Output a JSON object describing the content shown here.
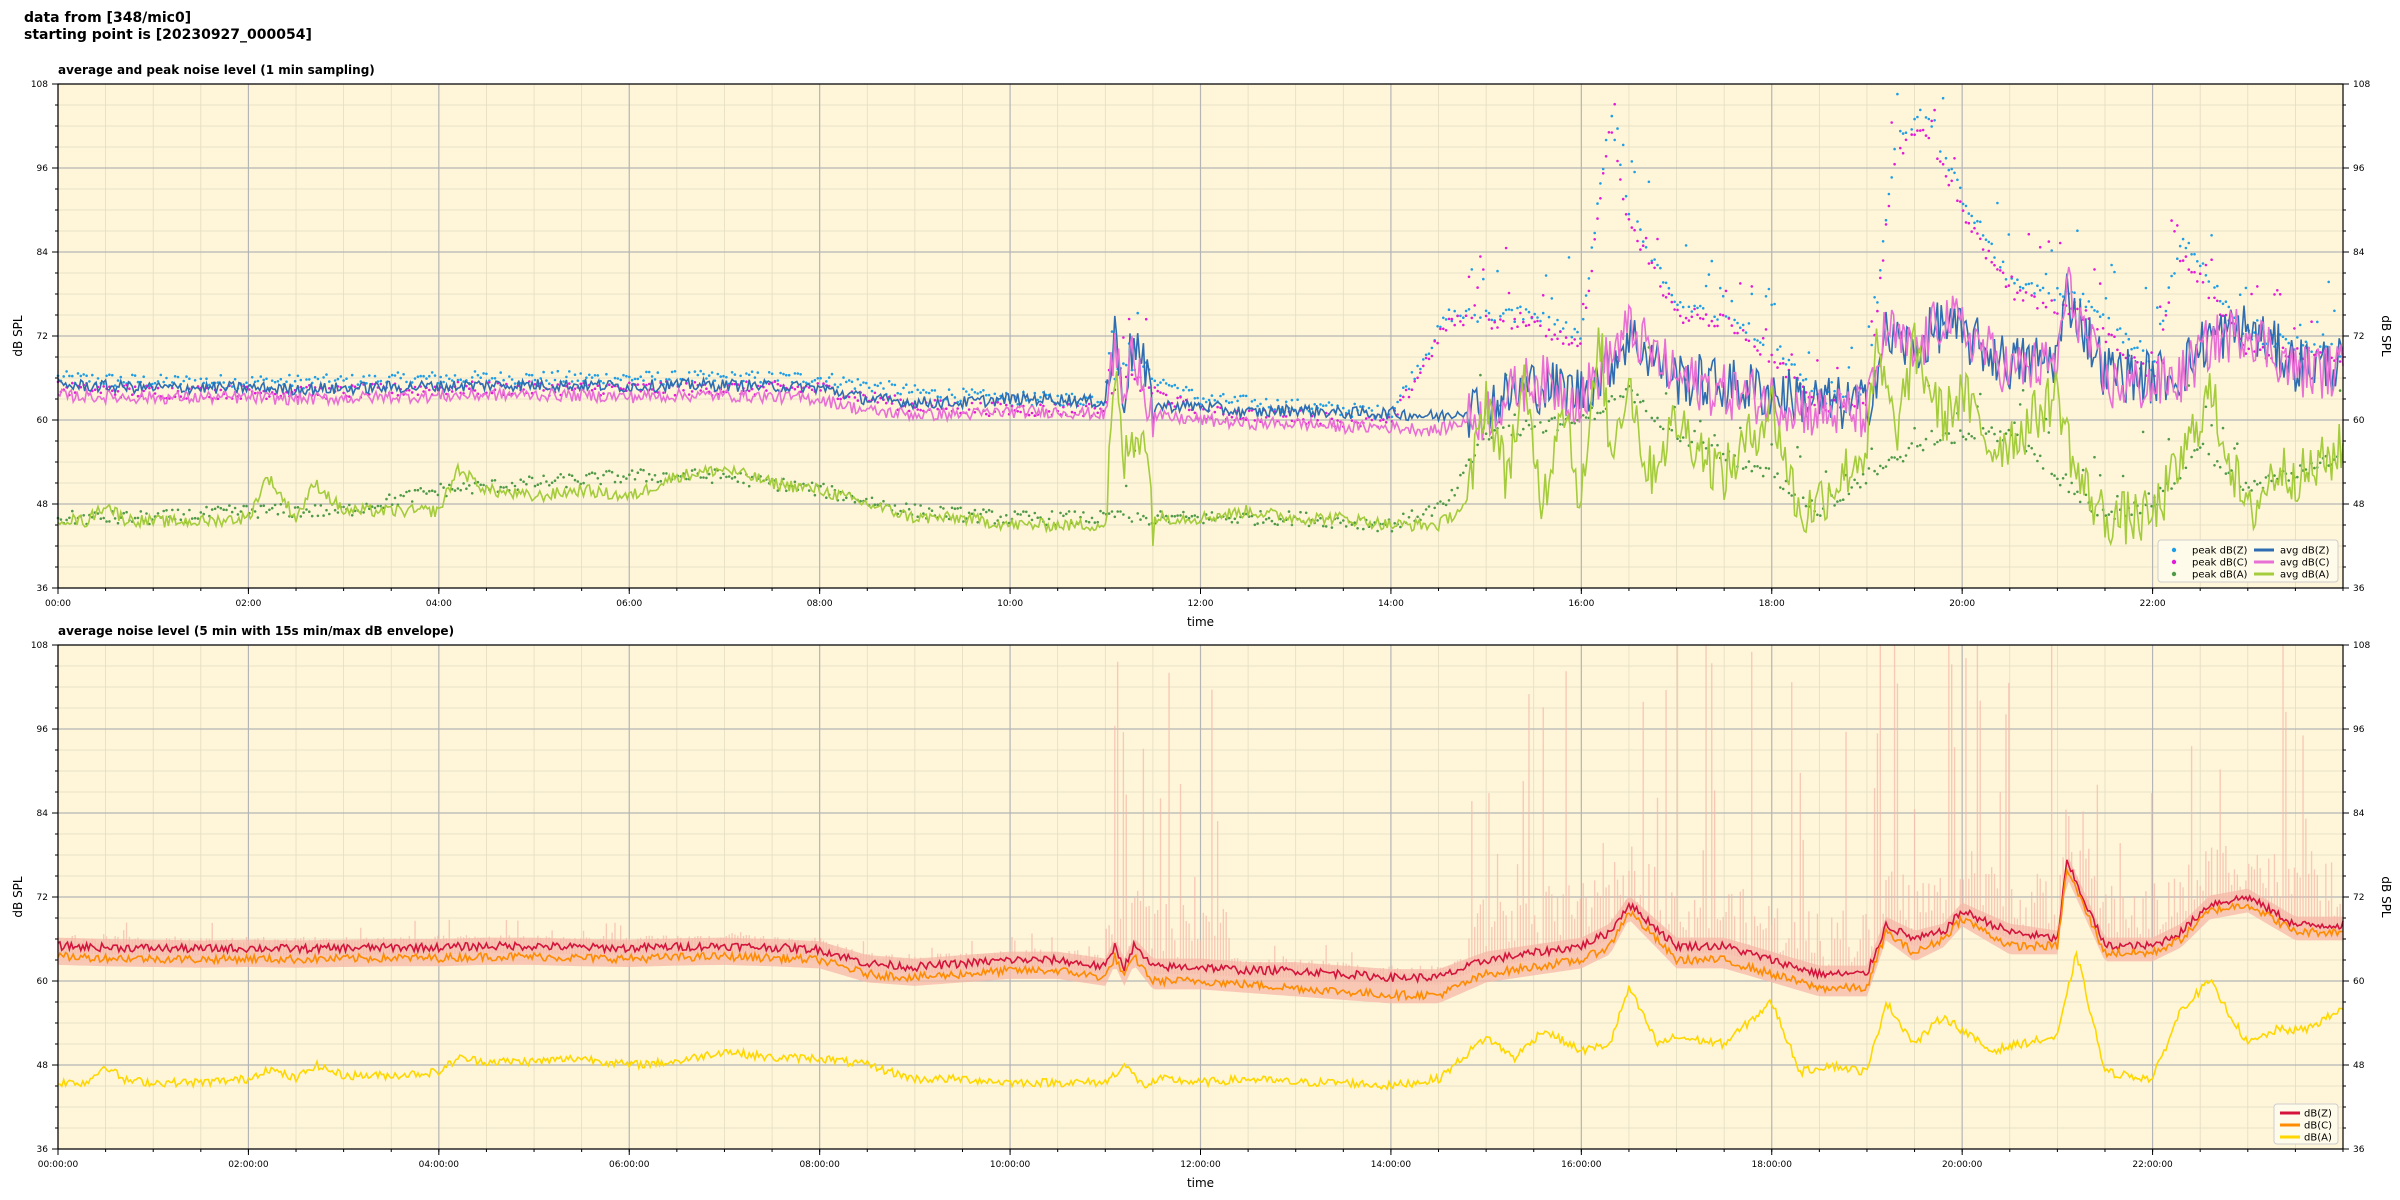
{
  "figure": {
    "header_line1": "data from [348/mic0]",
    "header_line2": "starting point is [20230927_000054]"
  },
  "chart_data": [
    {
      "type": "line",
      "title": "average and peak noise level (1 min sampling)",
      "xlabel": "time",
      "ylabel": "dB SPL",
      "xlim": [
        "00:00",
        "24:00"
      ],
      "ylim": [
        36,
        108
      ],
      "yticks": [
        36,
        48,
        60,
        72,
        84,
        96,
        108
      ],
      "xtick_labels": [
        "00:00",
        "02:00",
        "04:00",
        "06:00",
        "08:00",
        "10:00",
        "12:00",
        "14:00",
        "16:00",
        "18:00",
        "20:00",
        "22:00"
      ],
      "grid": true,
      "legend_position": "lower-right",
      "background": "#fff6d9",
      "series": [
        {
          "name": "peak dB(Z)",
          "kind": "points",
          "color": "#1f9ee6",
          "x": [
            0,
            1,
            2,
            3,
            4,
            5,
            6,
            7,
            8,
            9,
            10,
            11,
            11.2,
            12,
            13,
            14,
            14.6,
            15,
            15.5,
            16,
            16.3,
            16.5,
            17,
            17.5,
            18,
            18.5,
            19,
            19.3,
            19.6,
            20,
            20.5,
            21,
            21.2,
            22,
            22.3,
            23,
            24
          ],
          "values": [
            66,
            65.5,
            65.5,
            65.5,
            66,
            66,
            66,
            66,
            66,
            64,
            63,
            63,
            68,
            63,
            62,
            61,
            75,
            75,
            75,
            72,
            104,
            90,
            76,
            75,
            71,
            63,
            64,
            100,
            104,
            92,
            80,
            78,
            78,
            68,
            86,
            72,
            70
          ]
        },
        {
          "name": "peak dB(C)",
          "kind": "points",
          "color": "#e21bd6",
          "x": [
            0,
            1,
            2,
            3,
            4,
            5,
            6,
            7,
            8,
            9,
            10,
            11,
            11.2,
            12,
            13,
            14,
            14.6,
            15,
            15.5,
            16,
            16.3,
            16.5,
            17,
            17.5,
            18,
            18.5,
            19,
            19.3,
            19.6,
            20,
            20.5,
            21,
            21.2,
            22,
            22.3,
            23,
            24
          ],
          "values": [
            64.5,
            64,
            64,
            64,
            64.5,
            64.5,
            64.5,
            64.5,
            64.5,
            62,
            61.5,
            61.5,
            66,
            61,
            60.5,
            59.5,
            74,
            74,
            74,
            70,
            102,
            88,
            75,
            74,
            69,
            62,
            63,
            98,
            102,
            90,
            78,
            76,
            76,
            66,
            84,
            70,
            69
          ]
        },
        {
          "name": "peak dB(A)",
          "kind": "points",
          "color": "#4f9a48",
          "x": [
            0,
            1,
            2,
            3,
            4,
            5,
            6,
            7,
            8,
            9,
            10,
            11,
            12,
            13,
            14,
            14.6,
            15,
            16,
            16.5,
            17,
            17.5,
            18,
            18.5,
            19,
            19.5,
            20,
            20.5,
            21,
            21.5,
            22,
            22.5,
            23,
            24
          ],
          "values": [
            46,
            46,
            47,
            47,
            50,
            51,
            52,
            52,
            50,
            47,
            46,
            46,
            46,
            46,
            45,
            48,
            58,
            60,
            64,
            58,
            55,
            52,
            47,
            52,
            56,
            58,
            58,
            52,
            46,
            48,
            56,
            50,
            55
          ]
        },
        {
          "name": "avg dB(Z)",
          "kind": "line",
          "color": "#2f6db2",
          "x": [
            0,
            0.5,
            1,
            1.5,
            2,
            2.5,
            3,
            3.5,
            4,
            4.5,
            5,
            5.5,
            6,
            6.5,
            7,
            7.5,
            8,
            8.5,
            9,
            9.5,
            10,
            10.5,
            11,
            11.1,
            11.2,
            11.3,
            11.5,
            12,
            12.5,
            13,
            13.5,
            14,
            14.5,
            15,
            15.5,
            16,
            16.3,
            16.5,
            17,
            17.5,
            18,
            18.5,
            19,
            19.2,
            19.5,
            19.8,
            20,
            20.5,
            21,
            21.1,
            21.5,
            22,
            22.3,
            22.6,
            23,
            23.5,
            24
          ],
          "values": [
            65,
            64.8,
            64.6,
            64.6,
            64.6,
            64.4,
            64.5,
            64.7,
            64.8,
            65,
            65,
            65,
            64.8,
            65,
            65,
            64.8,
            64.6,
            63,
            62.5,
            62.5,
            63,
            63,
            62.5,
            72,
            64,
            72,
            62,
            62,
            61,
            61.5,
            61,
            61,
            60.5,
            62,
            65,
            64,
            68,
            72,
            66,
            65,
            64,
            62.5,
            62,
            72,
            70,
            74,
            72,
            68,
            69,
            78,
            67,
            66,
            67,
            72,
            73,
            68,
            68
          ]
        },
        {
          "name": "avg dB(C)",
          "kind": "line",
          "color": "#e870d5",
          "x": [
            0,
            0.5,
            1,
            1.5,
            2,
            2.5,
            3,
            3.5,
            4,
            4.5,
            5,
            5.5,
            6,
            6.5,
            7,
            7.5,
            8,
            8.5,
            9,
            9.5,
            10,
            10.5,
            11,
            11.1,
            11.2,
            11.3,
            11.5,
            12,
            12.5,
            13,
            13.5,
            14,
            14.5,
            15,
            15.5,
            16,
            16.3,
            16.5,
            17,
            17.5,
            18,
            18.5,
            19,
            19.2,
            19.5,
            19.8,
            20,
            20.5,
            21,
            21.1,
            21.5,
            22,
            22.3,
            22.6,
            23,
            23.5,
            24
          ],
          "values": [
            63.5,
            63.3,
            63.2,
            63.2,
            63.2,
            63,
            63.1,
            63.3,
            63.4,
            63.6,
            63.6,
            63.5,
            63.3,
            63.5,
            63.5,
            63.3,
            63,
            61.3,
            60.8,
            60.8,
            61.2,
            61.2,
            60.8,
            71,
            62,
            71,
            60.5,
            60,
            59.5,
            59.5,
            59,
            59,
            58.5,
            61,
            66,
            63,
            69,
            73,
            66,
            64,
            63,
            61,
            61,
            73,
            69,
            75,
            73,
            67,
            68,
            79,
            65,
            65,
            66,
            71,
            73,
            67,
            67
          ]
        },
        {
          "name": "avg dB(A)",
          "kind": "line",
          "color": "#a4cc3c",
          "x": [
            0,
            0.3,
            0.5,
            0.7,
            1,
            1.5,
            2,
            2.2,
            2.5,
            2.7,
            3,
            3.5,
            4,
            4.2,
            4.5,
            5,
            5.5,
            6,
            6.5,
            7,
            7.5,
            8,
            8.5,
            9,
            9.5,
            10,
            10.5,
            11,
            11.1,
            11.2,
            11.4,
            11.5,
            12,
            12.5,
            13,
            13.5,
            14,
            14.5,
            14.8,
            15,
            15.2,
            15.4,
            15.6,
            15.8,
            16,
            16.2,
            16.3,
            16.5,
            16.7,
            17,
            17.5,
            18,
            18.3,
            18.6,
            19,
            19.1,
            19.3,
            19.5,
            19.8,
            20,
            20.3,
            20.6,
            21,
            21.2,
            21.5,
            22,
            22.3,
            22.6,
            23,
            23.3,
            23.6,
            24
          ],
          "values": [
            46,
            45.5,
            48,
            45.8,
            45.5,
            45.5,
            46,
            52,
            46,
            51,
            47,
            47,
            47,
            53,
            50,
            49,
            50,
            49,
            52,
            53,
            51,
            50,
            48,
            46,
            46,
            45,
            45,
            45,
            66,
            54,
            60,
            46,
            46,
            47,
            46,
            46,
            45,
            45,
            48,
            64,
            52,
            64,
            48,
            64,
            48,
            72,
            55,
            66,
            52,
            60,
            52,
            62,
            46,
            50,
            56,
            70,
            58,
            70,
            60,
            64,
            56,
            58,
            64,
            52,
            46,
            46,
            54,
            64,
            46,
            53,
            52,
            56
          ]
        }
      ]
    },
    {
      "type": "line",
      "title": "average noise level (5 min with 15s min/max dB envelope)",
      "xlabel": "time",
      "ylabel": "dB SPL",
      "xlim": [
        "00:00:00",
        "24:00:00"
      ],
      "ylim": [
        36,
        108
      ],
      "yticks": [
        36,
        48,
        60,
        72,
        84,
        96,
        108
      ],
      "xtick_labels": [
        "00:00:00",
        "02:00:00",
        "04:00:00",
        "06:00:00",
        "08:00:00",
        "10:00:00",
        "12:00:00",
        "14:00:00",
        "16:00:00",
        "18:00:00",
        "20:00:00",
        "22:00:00"
      ],
      "grid": true,
      "legend_position": "lower-right",
      "background": "#fff6d9",
      "envelope_color": "#f5b8a8",
      "series": [
        {
          "name": "dB(Z)",
          "kind": "line",
          "color": "#d4143c",
          "x": [
            0,
            0.5,
            1,
            1.5,
            2,
            2.5,
            3,
            3.5,
            4,
            4.5,
            5,
            5.5,
            6,
            6.5,
            7,
            7.5,
            8,
            8.5,
            9,
            9.5,
            10,
            10.5,
            11,
            11.1,
            11.2,
            11.3,
            11.5,
            12,
            12.5,
            13,
            13.5,
            14,
            14.5,
            15,
            15.5,
            16,
            16.3,
            16.5,
            17,
            17.5,
            18,
            18.5,
            19,
            19.2,
            19.5,
            19.8,
            20,
            20.5,
            21,
            21.1,
            21.5,
            22,
            22.3,
            22.6,
            23,
            23.5,
            24
          ],
          "values": [
            65,
            64.8,
            64.7,
            64.6,
            64.7,
            64.6,
            64.7,
            64.8,
            64.8,
            65,
            65,
            64.8,
            64.7,
            64.9,
            65,
            64.8,
            64.5,
            62.5,
            62,
            62.5,
            63,
            63,
            62,
            65,
            62,
            65,
            62,
            62,
            61.5,
            61.5,
            61,
            60.5,
            60.5,
            63,
            64,
            65,
            67,
            71,
            65,
            65,
            63,
            61,
            61,
            68,
            66,
            67,
            70,
            67,
            66,
            77,
            65,
            65,
            67,
            71,
            72,
            68,
            68
          ]
        },
        {
          "name": "dB(C)",
          "kind": "line",
          "color": "#ff8c00",
          "x": [
            0,
            0.5,
            1,
            1.5,
            2,
            2.5,
            3,
            3.5,
            4,
            4.5,
            5,
            5.5,
            6,
            6.5,
            7,
            7.5,
            8,
            8.5,
            9,
            9.5,
            10,
            10.5,
            11,
            11.1,
            11.2,
            11.3,
            11.5,
            12,
            12.5,
            13,
            13.5,
            14,
            14.5,
            15,
            15.5,
            16,
            16.3,
            16.5,
            17,
            17.5,
            18,
            18.5,
            19,
            19.2,
            19.5,
            19.8,
            20,
            20.5,
            21,
            21.1,
            21.5,
            22,
            22.3,
            22.6,
            23,
            23.5,
            24
          ],
          "values": [
            63.5,
            63.3,
            63.2,
            63.1,
            63.2,
            63.1,
            63.2,
            63.3,
            63.3,
            63.5,
            63.5,
            63.3,
            63.2,
            63.4,
            63.5,
            63.3,
            63,
            61,
            60.5,
            61,
            61.5,
            61.5,
            60.5,
            63.5,
            60.5,
            63.5,
            60,
            60,
            59.5,
            59,
            58.5,
            58,
            58,
            61,
            62,
            63,
            65,
            70,
            63,
            63,
            61,
            59,
            59,
            67,
            64,
            66,
            69,
            65,
            65,
            76,
            64,
            64,
            66,
            70,
            71,
            67,
            67
          ]
        },
        {
          "name": "dB(A)",
          "kind": "line",
          "color": "#ffd700",
          "x": [
            0,
            0.3,
            0.5,
            0.7,
            1,
            1.5,
            2,
            2.2,
            2.5,
            2.7,
            3,
            3.5,
            4,
            4.2,
            4.5,
            5,
            5.5,
            6,
            6.5,
            7,
            7.5,
            8,
            8.5,
            9,
            9.5,
            10,
            10.5,
            11,
            11.2,
            11.4,
            11.6,
            12,
            12.5,
            13,
            13.5,
            14,
            14.5,
            15,
            15.3,
            15.6,
            16,
            16.3,
            16.5,
            16.8,
            17,
            17.5,
            18,
            18.3,
            18.6,
            19,
            19.2,
            19.5,
            19.8,
            20,
            20.3,
            20.6,
            21,
            21.2,
            21.5,
            22,
            22.3,
            22.6,
            23,
            23.3,
            23.6,
            24
          ],
          "values": [
            45.5,
            45.5,
            48,
            45.8,
            45.5,
            45.5,
            46,
            47.5,
            46,
            48,
            46.5,
            46.5,
            47,
            49,
            48.5,
            48.5,
            49,
            48,
            48.5,
            50,
            49,
            49,
            48,
            46,
            46,
            45.5,
            45.5,
            45.5,
            48,
            45,
            46,
            45.5,
            46,
            45.5,
            45.5,
            45,
            46,
            52,
            49,
            53,
            50,
            51,
            59,
            51,
            52,
            51,
            57,
            47,
            48,
            47,
            57,
            51,
            55,
            53,
            50,
            51,
            52,
            64,
            47,
            46,
            56,
            60,
            51,
            53,
            53,
            56
          ]
        }
      ]
    }
  ]
}
